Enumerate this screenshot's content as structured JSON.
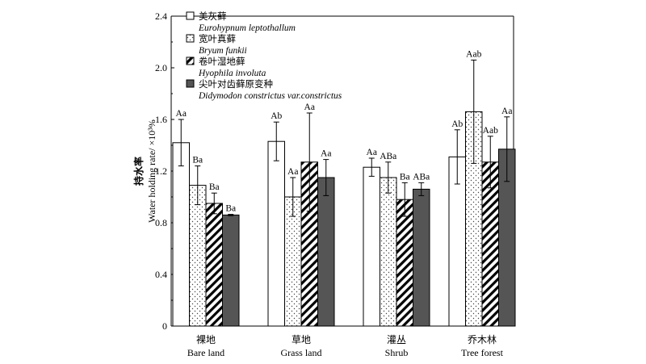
{
  "chart_data": {
    "type": "bar",
    "ylabel_cn": "持水率",
    "ylabel_en": "Water holding rate/ ×10³%",
    "ylim": [
      0,
      2.4
    ],
    "yticks": [
      "0",
      "0.4",
      "0.8",
      "1.2",
      "1.6",
      "2.0",
      "2.4"
    ],
    "ytick_values": [
      0,
      0.4,
      0.8,
      1.2,
      1.6,
      2.0,
      2.4
    ],
    "categories": [
      {
        "cn": "裸地",
        "en": "Bare land"
      },
      {
        "cn": "草地",
        "en": "Grass land"
      },
      {
        "cn": "灌丛",
        "en": "Shrub"
      },
      {
        "cn": "乔木林",
        "en": "Tree forest"
      }
    ],
    "series": [
      {
        "name_cn": "美灰藓",
        "name_latin": "Eurohypnum leptothallum",
        "fill": "white",
        "values": [
          1.42,
          1.43,
          1.23,
          1.31
        ],
        "errors": [
          0.18,
          0.15,
          0.07,
          0.21
        ],
        "labels": [
          "Aa",
          "Ab",
          "Aa",
          "Ab"
        ]
      },
      {
        "name_cn": "宽叶真藓",
        "name_latin": "Bryum funkii",
        "fill": "dots",
        "values": [
          1.09,
          1.0,
          1.15,
          1.66
        ],
        "errors": [
          0.15,
          0.15,
          0.12,
          0.4
        ],
        "labels": [
          "Ba",
          "Aa",
          "ABa",
          "Aab"
        ]
      },
      {
        "name_cn": "卷叶湿地藓",
        "name_latin": "Hyophila involuta",
        "fill": "hatch",
        "values": [
          0.95,
          1.27,
          0.98,
          1.27
        ],
        "errors": [
          0.08,
          0.38,
          0.13,
          0.2
        ],
        "labels": [
          "Ba",
          "Aa",
          "Ba",
          "Aab"
        ]
      },
      {
        "name_cn": "尖叶对齿藓原变种",
        "name_latin": "Didymodon constrictus var.constrictus",
        "fill": "#555555",
        "values": [
          0.86,
          1.15,
          1.06,
          1.37
        ],
        "errors": [
          0.005,
          0.14,
          0.05,
          0.25
        ],
        "labels": [
          "Ba",
          "Aa",
          "ABa",
          "Aa"
        ]
      }
    ],
    "legend_position": "top-left",
    "grid": false
  }
}
